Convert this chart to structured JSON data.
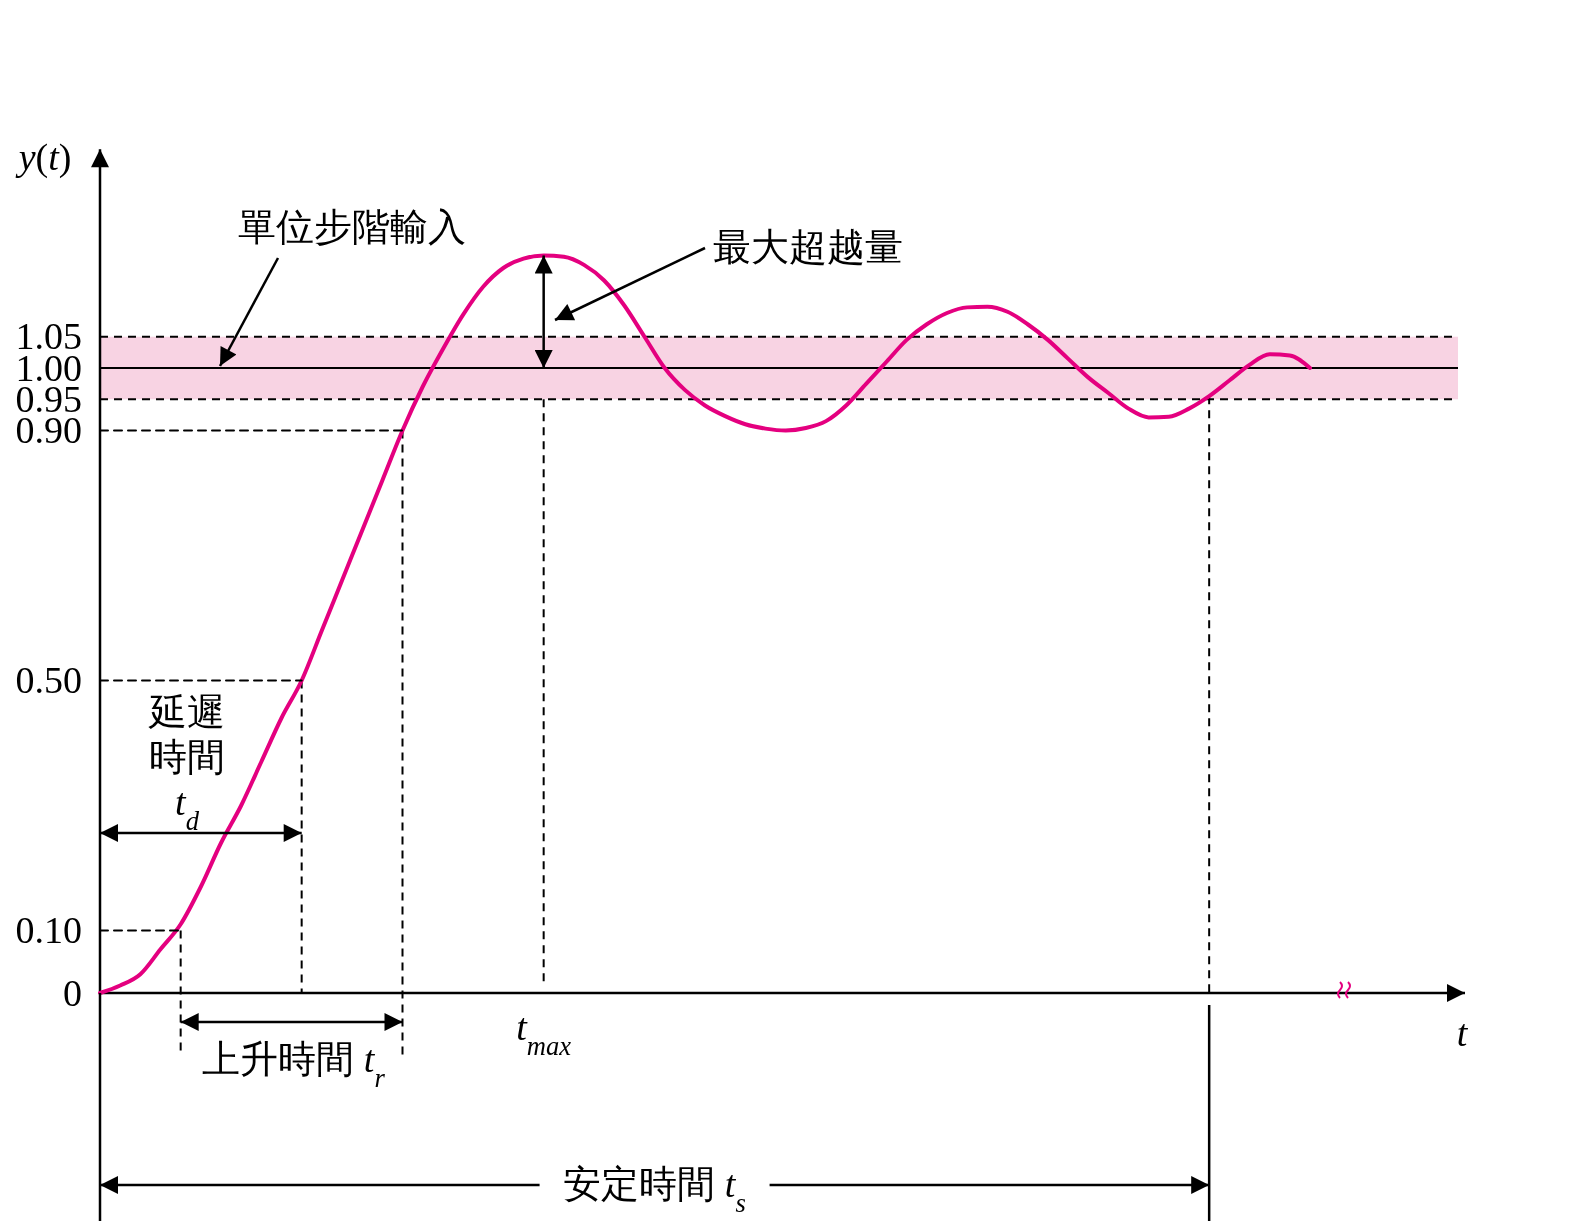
{
  "chart_data": {
    "type": "line",
    "xlabel": "t",
    "ylabel": "y(t)",
    "categories": [
      null,
      null,
      null,
      null,
      null,
      null,
      null,
      null,
      null,
      null,
      null,
      null,
      null,
      null,
      null,
      null,
      null,
      null,
      null,
      null,
      null,
      null,
      null,
      null,
      null,
      null,
      null,
      null,
      null,
      null,
      null,
      null,
      null,
      null,
      null,
      null,
      null,
      null,
      null,
      null,
      null,
      null,
      null,
      null,
      null,
      null,
      null,
      null,
      null,
      null,
      null,
      null,
      null,
      null,
      null,
      null,
      null,
      null,
      null,
      null,
      null
    ],
    "series": [
      {
        "color": "#e4007f",
        "values": [
          0,
          0.012,
          0.03,
          0.07,
          0.11,
          0.17,
          0.24,
          0.3,
          0.37,
          0.44,
          0.5,
          0.58,
          0.66,
          0.74,
          0.82,
          0.9,
          0.97,
          1.03,
          1.085,
          1.13,
          1.16,
          1.175,
          1.18,
          1.178,
          1.165,
          1.14,
          1.1,
          1.05,
          1.0,
          0.965,
          0.94,
          0.923,
          0.91,
          0.903,
          0.9,
          0.904,
          0.915,
          0.94,
          0.975,
          1.01,
          1.045,
          1.07,
          1.088,
          1.097,
          1.098,
          1.09,
          1.07,
          1.045,
          1.015,
          0.985,
          0.96,
          0.935,
          0.921,
          0.922,
          0.935,
          0.955,
          0.98,
          1.005,
          1.022,
          1.02,
          1.0
        ]
      },
      {
        "color": "#000000",
        "line_style": "dashed",
        "values": [
          0.1,
          0.1,
          0.1,
          0.1,
          0.1,
          null,
          null,
          null,
          null,
          null,
          null,
          null,
          null,
          null,
          null,
          null,
          null,
          null,
          null,
          null,
          null,
          null,
          null,
          null,
          null,
          null,
          null,
          null,
          null,
          null,
          null,
          null,
          null,
          null,
          null,
          null,
          null,
          null,
          null,
          null,
          null,
          null,
          null,
          null,
          null,
          null,
          null,
          null,
          null,
          null,
          null,
          null,
          null,
          null,
          null,
          null,
          null,
          null,
          null,
          null,
          null
        ]
      },
      {
        "color": "#000000",
        "line_style": "dashed",
        "values": [
          0.5,
          0.5,
          0.5,
          0.5,
          0.5,
          0.5,
          0.5,
          0.5,
          0.5,
          0.5,
          0.5,
          null,
          null,
          null,
          null,
          null,
          null,
          null,
          null,
          null,
          null,
          null,
          null,
          null,
          null,
          null,
          null,
          null,
          null,
          null,
          null,
          null,
          null,
          null,
          null,
          null,
          null,
          null,
          null,
          null,
          null,
          null,
          null,
          null,
          null,
          null,
          null,
          null,
          null,
          null,
          null,
          null,
          null,
          null,
          null,
          null,
          null,
          null,
          null,
          null,
          null
        ]
      },
      {
        "color": "#000000",
        "line_style": "dashed",
        "values": [
          0.9,
          0.9,
          0.9,
          0.9,
          0.9,
          0.9,
          0.9,
          0.9,
          0.9,
          0.9,
          0.9,
          0.9,
          0.9,
          0.9,
          0.9,
          0.9,
          null,
          null,
          null,
          null,
          null,
          null,
          null,
          null,
          null,
          null,
          null,
          null,
          null,
          null,
          null,
          null,
          null,
          null,
          null,
          null,
          null,
          null,
          null,
          null,
          null,
          null,
          null,
          null,
          null,
          null,
          null,
          null,
          null,
          null,
          null,
          null,
          null,
          null,
          null,
          null,
          null,
          null,
          null,
          null,
          null
        ]
      }
    ],
    "ylim": [
      0,
      1.35
    ],
    "yticks": [
      0,
      {
        "value": 0.1,
        "label": "0.10"
      },
      {
        "value": 0.5,
        "label": "0.50"
      },
      {
        "value": 0.9,
        "label": "0.90"
      },
      {
        "value": 0.95,
        "label": "0.95"
      },
      {
        "value": 1.0,
        "label": "1.00"
      },
      {
        "value": 1.05,
        "label": "1.05"
      }
    ],
    "bands": [
      {
        "axis": "y",
        "from": 0.95,
        "to": 1.05,
        "color": "#f8d3e3"
      }
    ],
    "ref_lines": [
      {
        "axis": "y",
        "value": 1.0,
        "color": "#000000",
        "line_style": "solid"
      },
      {
        "axis": "y",
        "value": 0.95,
        "color": "#000000",
        "line_style": "dashed"
      },
      {
        "axis": "y",
        "value": 1.05,
        "color": "#000000",
        "line_style": "dashed"
      }
    ],
    "annotations": [
      "單位步階輸入",
      "最大超越量",
      "t$_{max}$",
      "延遲時間t$_{d}$",
      "上升時間 t$_{r}$",
      "安定時間 t$_{s}$"
    ],
    "grid": false
  }
}
